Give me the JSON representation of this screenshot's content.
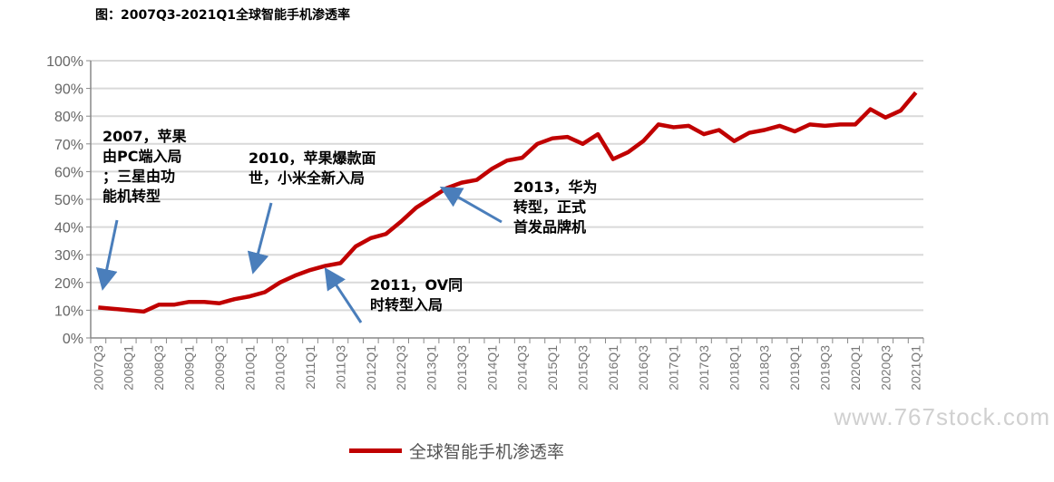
{
  "chart_data": {
    "type": "line",
    "title": "图：2007Q3-2021Q1全球智能手机渗透率",
    "xlabel": "",
    "ylabel": "",
    "ylim": [
      0,
      100
    ],
    "yticks": [
      "0%",
      "10%",
      "20%",
      "30%",
      "40%",
      "50%",
      "60%",
      "70%",
      "80%",
      "90%",
      "100%"
    ],
    "grid": true,
    "legend_position": "bottom",
    "x": [
      "2007Q3",
      "2007Q4",
      "2008Q1",
      "2008Q2",
      "2008Q3",
      "2008Q4",
      "2009Q1",
      "2009Q2",
      "2009Q3",
      "2009Q4",
      "2010Q1",
      "2010Q2",
      "2010Q3",
      "2010Q4",
      "2011Q1",
      "2011Q2",
      "2011Q3",
      "2011Q4",
      "2012Q1",
      "2012Q2",
      "2012Q3",
      "2012Q4",
      "2013Q1",
      "2013Q2",
      "2013Q3",
      "2013Q4",
      "2014Q1",
      "2014Q2",
      "2014Q3",
      "2014Q4",
      "2015Q1",
      "2015Q2",
      "2015Q3",
      "2015Q4",
      "2016Q1",
      "2016Q2",
      "2016Q3",
      "2016Q4",
      "2017Q1",
      "2017Q2",
      "2017Q3",
      "2017Q4",
      "2018Q1",
      "2018Q2",
      "2018Q3",
      "2018Q4",
      "2019Q1",
      "2019Q2",
      "2019Q3",
      "2019Q4",
      "2020Q1",
      "2020Q2",
      "2020Q3",
      "2020Q4",
      "2021Q1"
    ],
    "series": [
      {
        "name": "全球智能手机渗透率",
        "color": "#c00000",
        "values": [
          11,
          10.5,
          10,
          9.5,
          12,
          12,
          13,
          13,
          12.5,
          14,
          15,
          16.5,
          20,
          22.5,
          24.5,
          26,
          27,
          33,
          36,
          37.5,
          42,
          47,
          50.5,
          54,
          56,
          57,
          61,
          64,
          65,
          70,
          72,
          72.5,
          70,
          73.5,
          64.5,
          67,
          71,
          77,
          76,
          76.5,
          73.5,
          75,
          71,
          74,
          75,
          76.5,
          74.5,
          77,
          76.5,
          77,
          77,
          82.5,
          79.5,
          82,
          88.5
        ]
      }
    ],
    "annotations": [
      {
        "text": "2007，苹果\n由PC端入局\n；三星由功\n能机转型",
        "points_to": "2007Q3"
      },
      {
        "text": "2010，苹果爆款面\n世，小米全新入局",
        "points_to": "2010Q1"
      },
      {
        "text": "2011，OV同\n时转型入局",
        "points_to": "2011Q2"
      },
      {
        "text": "2013，华为\n转型，正式\n首发品牌机",
        "points_to": "2013Q2"
      }
    ],
    "watermark": "www.767stock.com"
  }
}
